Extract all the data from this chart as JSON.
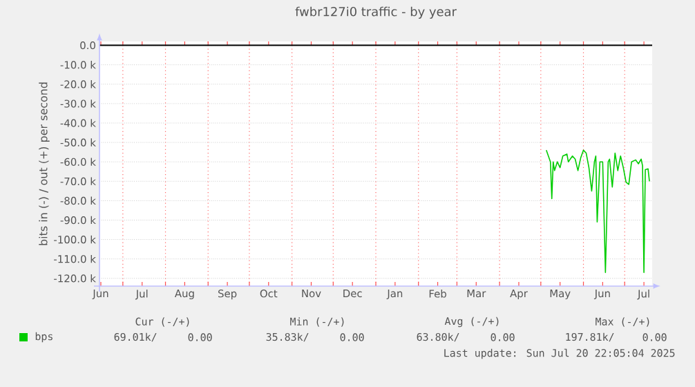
{
  "chart_data": {
    "type": "line",
    "title": "fwbr127i0 traffic - by year",
    "ylabel": "bits in (-) / out (+) per second",
    "x": [
      "2025-05-05",
      "2025-05-08",
      "2025-05-09",
      "2025-05-10",
      "2025-05-11",
      "2025-05-13",
      "2025-05-15",
      "2025-05-17",
      "2025-05-20",
      "2025-05-21",
      "2025-05-24",
      "2025-05-26",
      "2025-05-28",
      "2025-05-30",
      "2025-06-01",
      "2025-06-03",
      "2025-06-05",
      "2025-06-07",
      "2025-06-09",
      "2025-06-10",
      "2025-06-11",
      "2025-06-13",
      "2025-06-15",
      "2025-06-17",
      "2025-06-19",
      "2025-06-20",
      "2025-06-22",
      "2025-06-24",
      "2025-06-26",
      "2025-06-28",
      "2025-06-30",
      "2025-07-02",
      "2025-07-04",
      "2025-07-06",
      "2025-07-09",
      "2025-07-11",
      "2025-07-13",
      "2025-07-14",
      "2025-07-15",
      "2025-07-16",
      "2025-07-18",
      "2025-07-19"
    ],
    "series": [
      {
        "name": "bps",
        "color": "#00cc00",
        "values": [
          -54000,
          -60000,
          -79000,
          -60000,
          -64500,
          -60000,
          -63000,
          -57000,
          -56000,
          -60000,
          -57000,
          -58600,
          -64500,
          -58000,
          -54000,
          -55500,
          -63000,
          -75000,
          -60000,
          -57000,
          -91000,
          -60000,
          -60000,
          -117000,
          -60000,
          -58600,
          -73000,
          -55500,
          -64500,
          -57000,
          -63000,
          -70500,
          -71600,
          -60000,
          -59000,
          -61000,
          -58600,
          -62000,
          -117000,
          -64000,
          -63600,
          -70000
        ]
      }
    ],
    "xlim": [
      "2024-06-14",
      "2025-07-21"
    ],
    "xticks": [
      {
        "value": "2024-07-01",
        "label": null
      },
      {
        "value": "2024-08-01",
        "label": null
      },
      {
        "value": "2024-09-01",
        "label": null
      },
      {
        "value": "2024-10-01",
        "label": null
      },
      {
        "value": "2024-11-01",
        "label": null
      },
      {
        "value": "2024-12-01",
        "label": null
      },
      {
        "value": "2025-01-01",
        "label": null
      },
      {
        "value": "2025-02-01",
        "label": null
      },
      {
        "value": "2025-03-01",
        "label": null
      },
      {
        "value": "2025-04-01",
        "label": null
      },
      {
        "value": "2025-05-01",
        "label": null
      },
      {
        "value": "2025-06-01",
        "label": null
      },
      {
        "value": "2025-07-01",
        "label": null
      },
      {
        "value": "2024-06-15",
        "label": "Jun"
      },
      {
        "value": "2024-07-15",
        "label": "Jul"
      },
      {
        "value": "2024-08-15",
        "label": "Aug"
      },
      {
        "value": "2024-09-15",
        "label": "Sep"
      },
      {
        "value": "2024-10-15",
        "label": "Oct"
      },
      {
        "value": "2024-11-15",
        "label": "Nov"
      },
      {
        "value": "2024-12-15",
        "label": "Dec"
      },
      {
        "value": "2025-01-15",
        "label": "Jan"
      },
      {
        "value": "2025-02-15",
        "label": "Feb"
      },
      {
        "value": "2025-03-15",
        "label": "Mar"
      },
      {
        "value": "2025-04-15",
        "label": "Apr"
      },
      {
        "value": "2025-05-15",
        "label": "May"
      },
      {
        "value": "2025-06-15",
        "label": "Jun"
      },
      {
        "value": "2025-07-15",
        "label": "Jul"
      }
    ],
    "ylim": [
      -124000,
      2000
    ],
    "yticks": [
      {
        "value": 0,
        "label": "0.0"
      },
      {
        "value": -10000,
        "label": "-10.0 k"
      },
      {
        "value": -20000,
        "label": "-20.0 k"
      },
      {
        "value": -30000,
        "label": "-30.0 k"
      },
      {
        "value": -40000,
        "label": "-40.0 k"
      },
      {
        "value": -50000,
        "label": "-50.0 k"
      },
      {
        "value": -60000,
        "label": "-60.0 k"
      },
      {
        "value": -70000,
        "label": "-70.0 k"
      },
      {
        "value": -80000,
        "label": "-80.0 k"
      },
      {
        "value": -90000,
        "label": "-90.0 k"
      },
      {
        "value": -100000,
        "label": "-100.0 k"
      },
      {
        "value": -110000,
        "label": "-110.0 k"
      },
      {
        "value": -120000,
        "label": "-120.0 k"
      }
    ],
    "ref_lines": [
      {
        "axis": "y",
        "value": 0,
        "color": "#000000"
      }
    ],
    "grid": true,
    "legend": "bottom",
    "annotations": [
      "Cur (-/+)",
      "Min (-/+)",
      "Avg (-/+)",
      "Max (-/+)",
      "69.01k/",
      "0.00",
      "35.83k/",
      "0.00",
      "63.80k/",
      "0.00",
      "197.81k/",
      "0.00",
      "Last update: Sun Jul 20 22:05:04 2025"
    ]
  }
}
